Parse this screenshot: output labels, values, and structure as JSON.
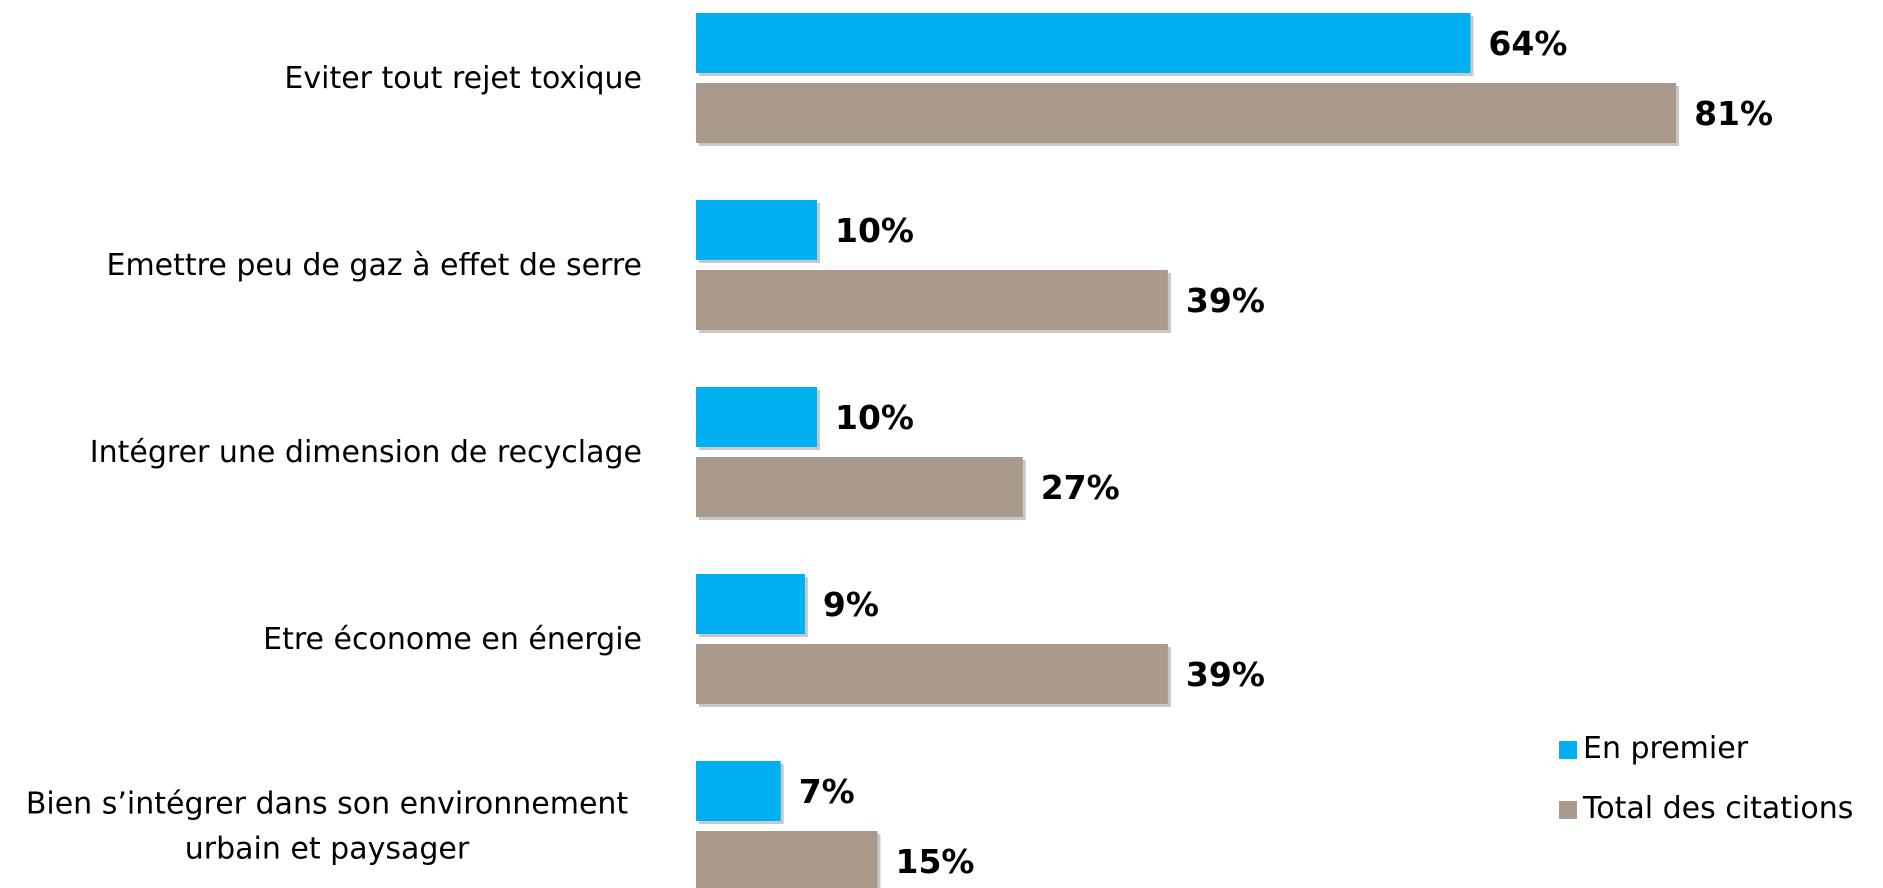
{
  "chart_data": {
    "type": "bar",
    "orientation": "horizontal",
    "categories": [
      [
        "Eviter tout rejet toxique"
      ],
      [
        "Emettre peu de gaz à effet de serre"
      ],
      [
        "Intégrer une dimension de recyclage"
      ],
      [
        "Etre économe en énergie"
      ],
      [
        "Bien s’intégrer dans son environnement",
        "urbain et paysager"
      ]
    ],
    "series": [
      {
        "name": "En premier",
        "color": "#00b0f0",
        "values": [
          64,
          10,
          10,
          9,
          7
        ],
        "labels": [
          "64%",
          "10%",
          "10%",
          "9%",
          "7%"
        ]
      },
      {
        "name": "Total des citations",
        "color": "#a99a8c",
        "values": [
          81,
          39,
          27,
          39,
          15
        ],
        "labels": [
          "81%",
          "39%",
          "27%",
          "39%",
          "15%"
        ]
      }
    ],
    "value_unit": "%",
    "xlim": [
      0,
      100
    ],
    "grid": false,
    "legend": "bottom-right"
  }
}
